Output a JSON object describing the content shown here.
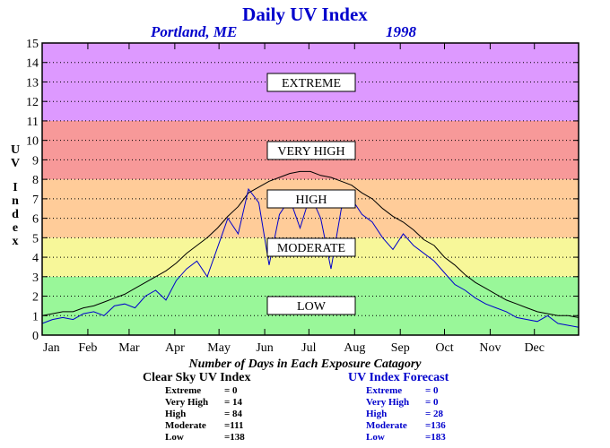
{
  "title": "Daily UV Index",
  "location": "Portland, ME",
  "year": "1998",
  "chart_data": {
    "type": "line",
    "ylabel": "UV Index",
    "ylim": [
      0,
      15
    ],
    "yticks": [
      "0",
      "1",
      "2",
      "3",
      "4",
      "5",
      "6",
      "7",
      "8",
      "9",
      "10",
      "11",
      "12",
      "13",
      "14",
      "15"
    ],
    "x_tick_labels": [
      "Jan",
      "Feb",
      "Mar",
      "Apr",
      "May",
      "Jun",
      "Jul",
      "Aug",
      "Sep",
      "Oct",
      "Nov",
      "Dec"
    ],
    "xlim_days": [
      1,
      365
    ],
    "bands": [
      {
        "label": "LOW",
        "from": 0,
        "to": 3,
        "color": "#99f799"
      },
      {
        "label": "MODERATE",
        "from": 3,
        "to": 5,
        "color": "#f7f799"
      },
      {
        "label": "HIGH",
        "from": 5,
        "to": 8,
        "color": "#ffcc99"
      },
      {
        "label": "VERY HIGH",
        "from": 8,
        "to": 11,
        "color": "#f79999"
      },
      {
        "label": "EXTREME",
        "from": 11,
        "to": 15,
        "color": "#dd99ff"
      }
    ],
    "series": [
      {
        "name": "Clear Sky UV Index",
        "color": "#000000",
        "x": [
          1,
          8,
          15,
          22,
          29,
          36,
          43,
          50,
          57,
          64,
          71,
          78,
          85,
          92,
          99,
          106,
          113,
          120,
          127,
          134,
          141,
          148,
          155,
          162,
          169,
          176,
          183,
          190,
          197,
          204,
          211,
          218,
          225,
          232,
          239,
          246,
          253,
          260,
          267,
          274,
          281,
          288,
          295,
          302,
          309,
          316,
          323,
          330,
          337,
          344,
          351,
          358,
          365
        ],
        "y": [
          1.0,
          1.1,
          1.2,
          1.2,
          1.4,
          1.5,
          1.7,
          1.9,
          2.1,
          2.4,
          2.7,
          3.0,
          3.3,
          3.7,
          4.2,
          4.6,
          5.0,
          5.5,
          6.1,
          6.6,
          7.3,
          7.6,
          7.9,
          8.1,
          8.3,
          8.4,
          8.4,
          8.2,
          8.1,
          7.9,
          7.7,
          7.3,
          7.0,
          6.5,
          6.1,
          5.8,
          5.4,
          4.9,
          4.6,
          4.0,
          3.6,
          3.1,
          2.7,
          2.4,
          2.1,
          1.8,
          1.6,
          1.4,
          1.2,
          1.1,
          1.0,
          1.0,
          0.9
        ]
      },
      {
        "name": "UV Index Forecast",
        "color": "#0000cc",
        "x": [
          1,
          8,
          15,
          22,
          29,
          36,
          43,
          50,
          57,
          64,
          71,
          78,
          85,
          92,
          99,
          106,
          113,
          120,
          127,
          134,
          141,
          148,
          155,
          162,
          169,
          176,
          183,
          190,
          197,
          204,
          211,
          218,
          225,
          232,
          239,
          246,
          253,
          260,
          267,
          274,
          281,
          288,
          295,
          302,
          309,
          316,
          323,
          330,
          337,
          344,
          351,
          358,
          365
        ],
        "y": [
          0.6,
          0.8,
          0.9,
          0.8,
          1.1,
          1.2,
          1.0,
          1.5,
          1.6,
          1.4,
          2.0,
          2.3,
          1.8,
          2.8,
          3.4,
          3.8,
          3.0,
          4.5,
          6.0,
          5.2,
          7.5,
          6.8,
          3.6,
          6.2,
          7.0,
          5.5,
          7.2,
          6.0,
          3.4,
          6.5,
          7.0,
          6.2,
          5.8,
          5.0,
          4.4,
          5.2,
          4.6,
          4.2,
          3.8,
          3.2,
          2.6,
          2.3,
          1.9,
          1.6,
          1.4,
          1.2,
          0.9,
          0.8,
          0.7,
          1.0,
          0.6,
          0.5,
          0.4
        ]
      }
    ]
  },
  "footer": {
    "title": "Number of Days in Each Exposure Catagory",
    "clear_sky": {
      "title": "Clear Sky UV Index",
      "rows": [
        {
          "label": "Extreme",
          "value": "= 0"
        },
        {
          "label": "Very High",
          "value": "= 14"
        },
        {
          "label": "High",
          "value": "= 84"
        },
        {
          "label": "Moderate",
          "value": "=111"
        },
        {
          "label": "Low",
          "value": "=138"
        }
      ]
    },
    "forecast": {
      "title": "UV Index Forecast",
      "rows": [
        {
          "label": "Extreme",
          "value": "= 0"
        },
        {
          "label": "Very High",
          "value": "= 0"
        },
        {
          "label": "High",
          "value": "= 28"
        },
        {
          "label": "Moderate",
          "value": "=136"
        },
        {
          "label": "Low",
          "value": "=183"
        }
      ]
    }
  }
}
